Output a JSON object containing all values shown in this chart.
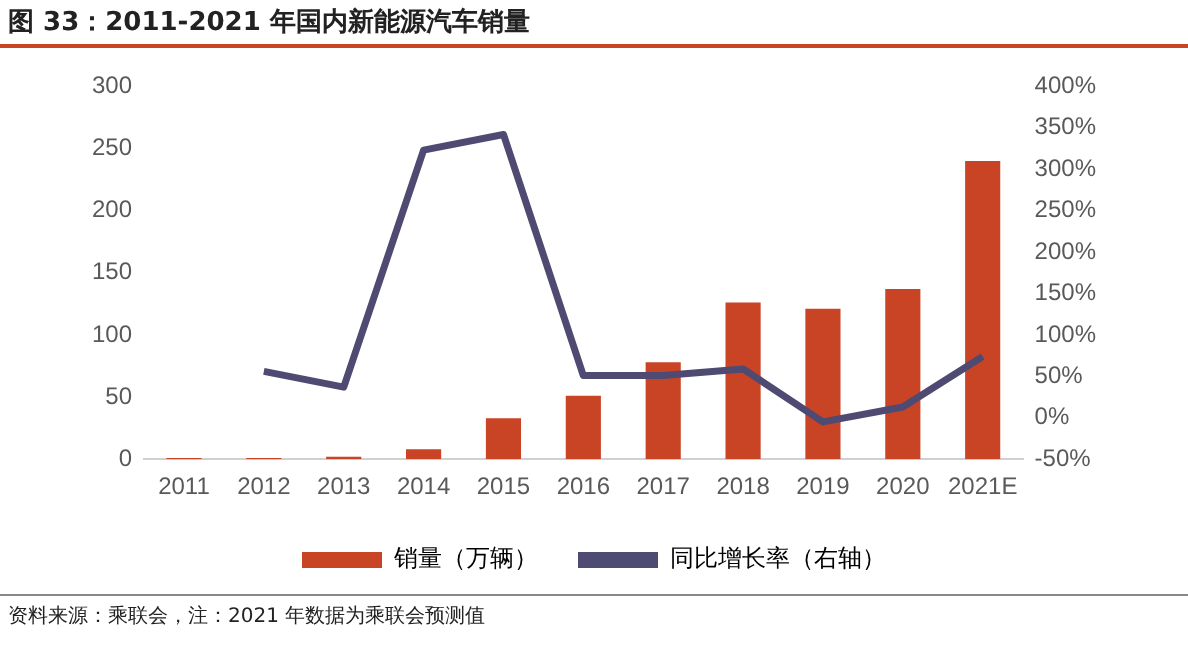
{
  "chart_data": {
    "type": "bar",
    "title": "图 33：2011-2021 年国内新能源汽车销量",
    "categories": [
      "2011",
      "2012",
      "2013",
      "2014",
      "2015",
      "2016",
      "2017",
      "2018",
      "2019",
      "2020",
      "2021E"
    ],
    "series": [
      {
        "name": "销量（万辆）",
        "color": "#c94325",
        "values": [
          1,
          1,
          2,
          8,
          33,
          51,
          78,
          126,
          121,
          137,
          240
        ]
      },
      {
        "name": "同比增长率（右轴）",
        "type": "line",
        "axis": "y2",
        "color": "#4e4a72",
        "values": [
          null,
          56,
          37,
          323,
          342,
          51,
          51,
          59,
          -5,
          13,
          74
        ]
      }
    ],
    "ylim": [
      0,
      300
    ],
    "yticks": [
      0,
      50,
      100,
      150,
      200,
      250,
      300
    ],
    "y2lim": [
      -50,
      400
    ],
    "y2ticks": [
      {
        "value": -50,
        "label": "-50%"
      },
      {
        "value": 0,
        "label": "0%"
      },
      {
        "value": 50,
        "label": "50%"
      },
      {
        "value": 100,
        "label": "100%"
      },
      {
        "value": 150,
        "label": "150%"
      },
      {
        "value": 200,
        "label": "200%"
      },
      {
        "value": 250,
        "label": "250%"
      },
      {
        "value": 300,
        "label": "300%"
      },
      {
        "value": 350,
        "label": "350%"
      },
      {
        "value": 400,
        "label": "400%"
      }
    ],
    "grid": false,
    "legend": "bottom",
    "marker": "none",
    "annotations": [
      "资料来源：乘联会，注：2021 年数据为乘联会预测值"
    ]
  }
}
